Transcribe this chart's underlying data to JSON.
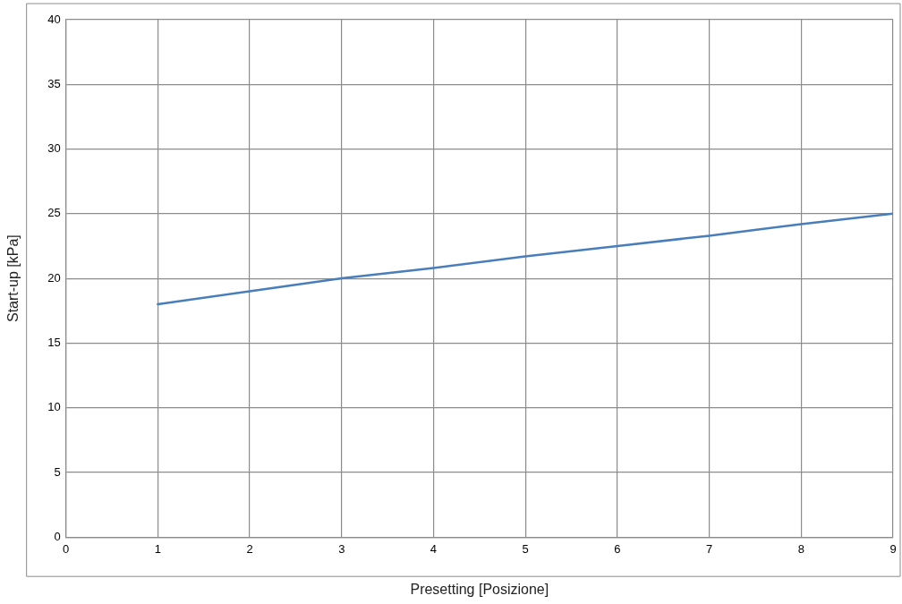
{
  "chart_data": {
    "type": "line",
    "xlabel": "Presetting [Posizione]",
    "ylabel": "Start-up [kPa]",
    "x": [
      1,
      2,
      3,
      4,
      5,
      6,
      7,
      8,
      9
    ],
    "series": [
      {
        "color": "#4a7ebb",
        "values": [
          18,
          19,
          20,
          20.8,
          21.7,
          22.5,
          23.3,
          24.2,
          25
        ]
      }
    ],
    "xlim": [
      0,
      9
    ],
    "xticks": [
      0,
      1,
      2,
      3,
      4,
      5,
      6,
      7,
      8,
      9
    ],
    "ylim": [
      0,
      40
    ],
    "yticks": [
      0,
      5,
      10,
      15,
      20,
      25,
      30,
      35,
      40
    ],
    "grid": true,
    "legend": false,
    "marker": "none",
    "line_style": "solid"
  }
}
